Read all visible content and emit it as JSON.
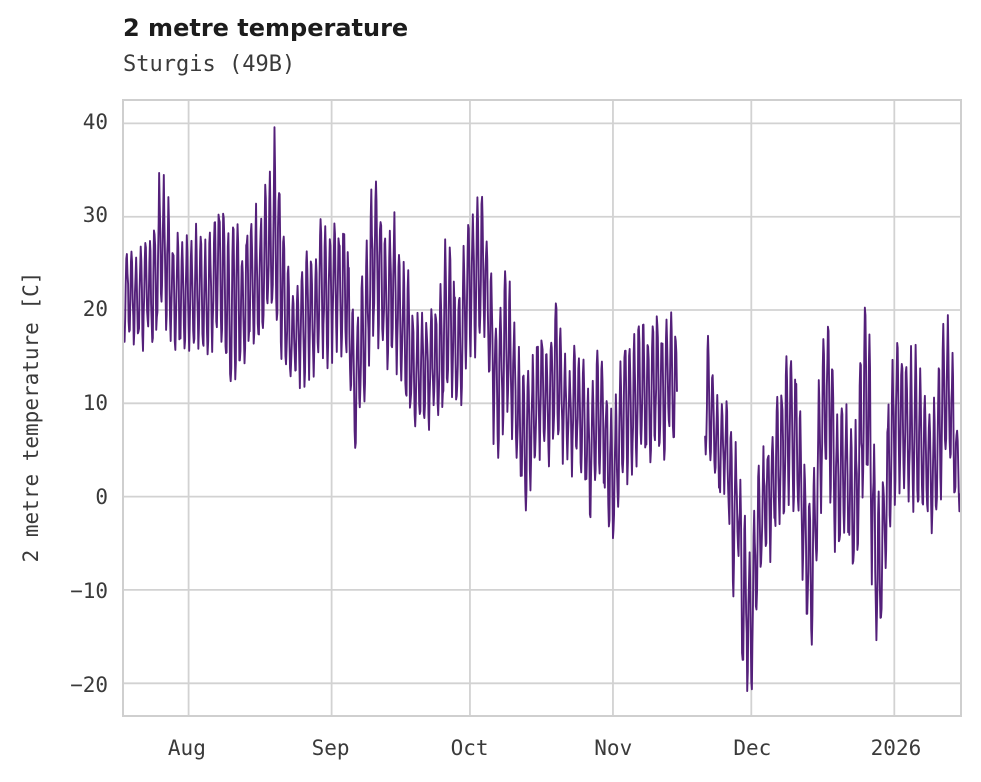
{
  "header": {
    "title": "2 metre temperature",
    "subtitle": "Sturgis (49B)"
  },
  "colors": {
    "line": "#54207a",
    "grid": "#d2d2d2",
    "spine": "#cfcfcf",
    "text": "#3a3a3a",
    "title_text": "#1c1c1c"
  },
  "chart_data": {
    "type": "line",
    "title": "2 metre temperature",
    "subtitle": "Sturgis (49B)",
    "xlabel": "",
    "ylabel": "2 metre temperature [C]",
    "grid": true,
    "legend": "none",
    "ylim": [
      -23.4,
      42.4
    ],
    "x_range_days": [
      0,
      181.25
    ],
    "y_ticks": [
      {
        "v": 40,
        "label": "40"
      },
      {
        "v": 30,
        "label": "30"
      },
      {
        "v": 20,
        "label": "20"
      },
      {
        "v": 10,
        "label": "10"
      },
      {
        "v": 0,
        "label": "0"
      },
      {
        "v": -10,
        "label": "−10"
      },
      {
        "v": -20,
        "label": "−20"
      }
    ],
    "x_ticks": [
      {
        "day": 14,
        "label": "Aug"
      },
      {
        "day": 45,
        "label": "Sep"
      },
      {
        "day": 75,
        "label": "Oct"
      },
      {
        "day": 106,
        "label": "Nov"
      },
      {
        "day": 136,
        "label": "Dec"
      },
      {
        "day": 167,
        "label": "2026"
      }
    ],
    "series_name": "2 metre temperature",
    "samples_per_day": 8,
    "note_daily_format": "per-day [mean C, diurnal amplitude C]; null = data gap",
    "daily": [
      [
        22,
        5
      ],
      [
        21.5,
        4.5
      ],
      [
        22,
        5
      ],
      [
        21,
        4.5
      ],
      [
        22,
        5.5
      ],
      [
        22.5,
        4.5
      ],
      [
        21.5,
        5
      ],
      [
        24,
        7
      ],
      [
        27,
        7
      ],
      [
        26,
        7
      ],
      [
        23,
        6
      ],
      [
        21,
        5
      ],
      [
        22,
        5.5
      ],
      [
        21.5,
        5
      ],
      [
        22,
        5
      ],
      [
        21,
        5.5
      ],
      [
        23,
        5.5
      ],
      [
        22,
        6
      ],
      [
        21,
        6
      ],
      [
        22,
        6.5
      ],
      [
        24,
        7
      ],
      [
        25,
        7
      ],
      [
        22,
        7
      ],
      [
        20,
        7
      ],
      [
        23,
        9
      ],
      [
        20,
        6
      ],
      [
        21,
        6
      ],
      [
        23,
        7
      ],
      [
        24,
        7
      ],
      [
        23,
        6
      ],
      [
        24,
        6.5
      ],
      [
        26,
        7
      ],
      [
        27,
        7.5
      ],
      [
        29,
        10
      ],
      [
        24,
        8
      ],
      [
        20,
        7
      ],
      [
        17,
        5
      ],
      [
        17,
        4
      ],
      [
        18,
        5
      ],
      [
        19,
        6
      ],
      [
        20,
        6.5
      ],
      [
        19,
        6
      ],
      [
        21,
        7
      ],
      [
        22,
        7.5
      ],
      [
        21,
        7
      ],
      [
        22,
        6
      ],
      [
        23,
        7
      ],
      [
        22,
        6
      ],
      [
        23,
        7.5
      ],
      [
        17,
        6
      ],
      [
        11,
        6.5
      ],
      [
        14,
        6
      ],
      [
        18,
        7
      ],
      [
        21,
        7
      ],
      [
        25,
        8
      ],
      [
        26,
        8.5
      ],
      [
        22,
        7
      ],
      [
        21,
        7
      ],
      [
        22,
        7
      ],
      [
        22,
        7.5
      ],
      [
        19,
        6
      ],
      [
        17,
        6
      ],
      [
        16,
        7
      ],
      [
        13,
        4.5
      ],
      [
        14,
        5
      ],
      [
        14,
        5.5
      ],
      [
        13,
        5
      ],
      [
        15,
        6
      ],
      [
        14,
        5
      ],
      [
        16,
        7
      ],
      [
        20,
        8
      ],
      [
        19,
        7
      ],
      [
        15,
        6
      ],
      [
        17,
        7
      ],
      [
        21,
        8
      ],
      [
        23,
        7
      ],
      [
        24,
        8
      ],
      [
        26,
        8.5
      ],
      [
        24,
        7
      ],
      [
        20,
        6
      ],
      [
        15,
        7
      ],
      [
        11,
        7
      ],
      [
        15,
        8
      ],
      [
        17,
        8.5
      ],
      [
        14,
        7
      ],
      [
        10,
        6
      ],
      [
        8,
        6
      ],
      [
        6,
        7
      ],
      [
        8,
        6
      ],
      [
        9,
        5
      ],
      [
        12,
        6.5
      ],
      [
        11,
        6
      ],
      [
        10,
        5.5
      ],
      [
        12,
        6
      ],
      [
        14,
        7.5
      ],
      [
        11,
        6
      ],
      [
        9,
        5
      ],
      [
        8,
        5
      ],
      [
        10,
        6
      ],
      [
        9,
        6
      ],
      [
        7,
        5.5
      ],
      [
        4,
        6
      ],
      [
        8,
        6
      ],
      [
        9,
        6.5
      ],
      [
        7,
        6
      ],
      [
        4,
        6.5
      ],
      [
        1,
        6.5
      ],
      [
        5,
        6
      ],
      [
        9,
        7
      ],
      [
        10,
        7
      ],
      [
        8,
        6
      ],
      [
        10,
        7
      ],
      [
        13,
        7
      ],
      [
        11,
        7
      ],
      [
        9,
        6
      ],
      [
        13,
        7.5
      ],
      [
        12,
        7
      ],
      [
        10,
        6
      ],
      [
        14,
        7
      ],
      [
        12,
        6
      ],
      null,
      null,
      null,
      null,
      null,
      null,
      [
        11,
        6
      ],
      [
        9,
        6
      ],
      [
        7,
        5
      ],
      [
        5,
        5
      ],
      [
        6,
        5
      ],
      [
        4,
        5
      ],
      [
        -3,
        7
      ],
      [
        0,
        5
      ],
      [
        -11,
        8.5
      ],
      [
        -11,
        8
      ],
      [
        -14,
        7.5
      ],
      [
        -6,
        7
      ],
      [
        -2,
        7
      ],
      [
        0,
        5
      ],
      [
        0,
        6
      ],
      [
        2,
        6
      ],
      [
        4,
        7
      ],
      [
        5,
        7
      ],
      [
        9,
        8
      ],
      [
        6,
        7
      ],
      [
        6,
        7
      ],
      [
        0,
        7
      ],
      [
        -6,
        7
      ],
      [
        -9,
        6.5
      ],
      [
        -2,
        7
      ],
      [
        6,
        8
      ],
      [
        10,
        8
      ],
      [
        10,
        8
      ],
      [
        3,
        7
      ],
      [
        1,
        6
      ],
      [
        4,
        7
      ],
      [
        2,
        6
      ],
      [
        -2,
        6.5
      ],
      [
        1,
        7
      ],
      [
        9,
        9
      ],
      [
        12,
        9.5
      ],
      [
        3,
        9
      ],
      [
        -8,
        8
      ],
      [
        -8,
        7
      ],
      [
        -2,
        7
      ],
      [
        4,
        8
      ],
      [
        8,
        8
      ],
      [
        9,
        8
      ],
      [
        8,
        8
      ],
      [
        6,
        7
      ],
      [
        8,
        7.5
      ],
      [
        7,
        7.5
      ],
      [
        5,
        6
      ],
      [
        4,
        6
      ],
      [
        2,
        6
      ],
      [
        4,
        7
      ],
      [
        8,
        8
      ],
      [
        11,
        7.5
      ],
      [
        10,
        7
      ],
      [
        6,
        6
      ],
      [
        2,
        4
      ]
    ]
  }
}
